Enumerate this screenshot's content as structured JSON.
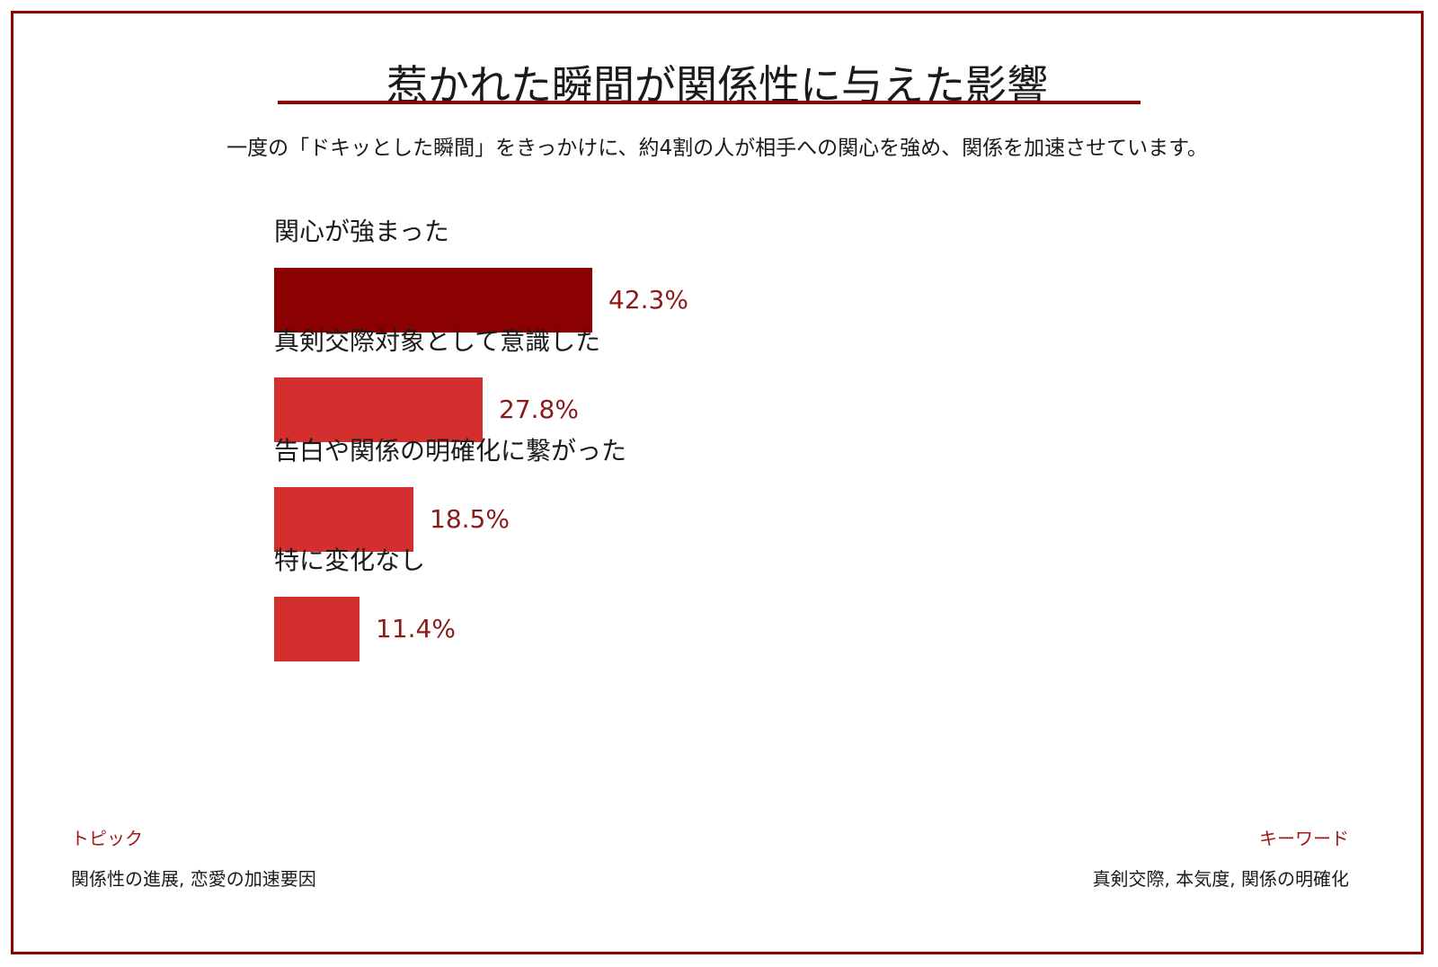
{
  "header": {
    "title": "惹かれた瞬間が関係性に与えた影響",
    "subtitle": "一度の「ドキッとした瞬間」をきっかけに、約4割の人が相手への関心を強め、関係を加速させています。"
  },
  "chart_data": {
    "type": "bar",
    "orientation": "horizontal",
    "title": "惹かれた瞬間が関係性に与えた影響",
    "categories": [
      "関心が強まった",
      "真剣交際対象として意識した",
      "告白や関係の明確化に繋がった",
      "特に変化なし"
    ],
    "values": [
      42.3,
      27.8,
      18.5,
      11.4
    ],
    "value_labels": [
      "42.3%",
      "27.8%",
      "18.5%",
      "11.4%"
    ],
    "unit": "%",
    "xlim": [
      0,
      100
    ],
    "grid": false,
    "legend": "none",
    "colors": {
      "highlight": "#8b0000",
      "default": "#d32f2f",
      "value_text": "#8b1a1a"
    }
  },
  "footer": {
    "topic_heading": "トピック",
    "topic_text": "関係性の進展, 恋愛の加速要因",
    "keyword_heading": "キーワード",
    "keyword_text": "真剣交際, 本気度, 関係の明確化"
  }
}
